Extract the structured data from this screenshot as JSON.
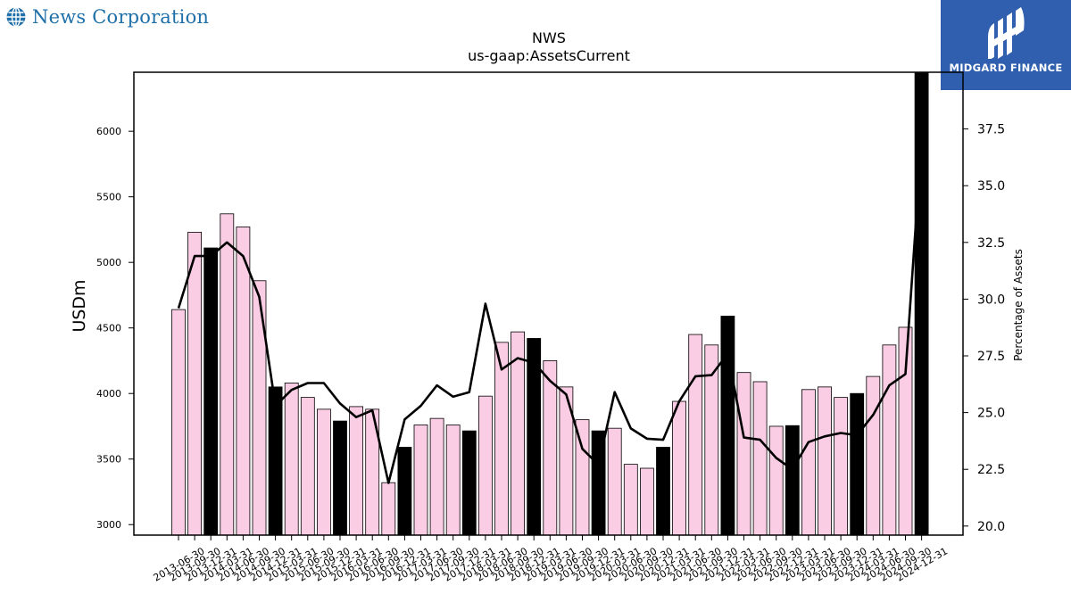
{
  "header": {
    "company_name": "News Corporation",
    "sponsor_name": "MIDGARD FINANCE",
    "brand_color": "#1f6fa8",
    "sponsor_color": "#2f5fae"
  },
  "chart_data": {
    "type": "bar",
    "title": "NWS",
    "subtitle": "us-gaap:AssetsCurrent",
    "ylabel": "USDm",
    "y2label": "Percentage of Assets",
    "ylim": [
      2920,
      6450
    ],
    "y2lim": [
      19.6,
      40.0
    ],
    "yticks": [
      3000,
      3500,
      4000,
      4500,
      5000,
      5500,
      6000
    ],
    "y2ticks": [
      "20.0",
      "22.5",
      "25.0",
      "27.5",
      "30.0",
      "32.5",
      "35.0",
      "37.5"
    ],
    "bar_colors": {
      "default": "#fbcde4",
      "highlight": "#000000",
      "edge": "#000000",
      "line": "#000000"
    },
    "categories": [
      "2013-06-30",
      "2013-09-30",
      "2013-12-31",
      "2014-03-31",
      "2014-06-30",
      "2014-09-30",
      "2014-12-31",
      "2015-03-31",
      "2015-06-30",
      "2015-09-30",
      "2015-12-31",
      "2016-03-31",
      "2016-06-30",
      "2016-09-30",
      "2016-12-31",
      "2017-03-31",
      "2017-06-30",
      "2017-09-30",
      "2017-12-31",
      "2018-03-31",
      "2018-06-30",
      "2018-09-30",
      "2018-12-31",
      "2019-03-31",
      "2019-06-30",
      "2019-09-30",
      "2019-12-31",
      "2020-03-31",
      "2020-06-30",
      "2020-09-30",
      "2020-12-31",
      "2021-03-31",
      "2021-06-30",
      "2021-09-30",
      "2021-12-31",
      "2022-03-31",
      "2022-06-30",
      "2022-09-30",
      "2022-12-31",
      "2023-03-31",
      "2023-06-30",
      "2023-09-30",
      "2023-12-31",
      "2024-03-31",
      "2024-06-30",
      "2024-09-30",
      "2024-12-31"
    ],
    "highlight_categories": [
      "2013-12-31",
      "2014-12-31",
      "2015-12-31",
      "2016-12-31",
      "2017-12-31",
      "2018-12-31",
      "2019-12-31",
      "2020-12-31",
      "2021-12-31",
      "2022-12-31",
      "2023-12-31",
      "2024-12-31"
    ],
    "series": [
      {
        "type": "bar",
        "axis": "left",
        "values": [
          4640,
          5230,
          5110,
          5370,
          5270,
          4860,
          4050,
          4080,
          3970,
          3880,
          3790,
          3900,
          3880,
          3320,
          3590,
          3760,
          3810,
          3760,
          3715,
          3980,
          4390,
          4470,
          4420,
          4250,
          4050,
          3800,
          3715,
          3735,
          3460,
          3430,
          3590,
          3940,
          4450,
          4370,
          4590,
          4160,
          4090,
          3750,
          3755,
          4030,
          4050,
          3970,
          4000,
          4130,
          4370,
          4505,
          6450
        ]
      },
      {
        "type": "line",
        "axis": "right",
        "values": [
          29.6,
          31.9,
          31.9,
          32.5,
          31.9,
          30.1,
          25.3,
          26.0,
          26.3,
          26.3,
          25.4,
          24.8,
          25.1,
          21.9,
          24.7,
          25.3,
          26.2,
          25.7,
          25.9,
          29.8,
          26.9,
          27.4,
          27.2,
          26.4,
          25.8,
          23.4,
          22.7,
          25.9,
          24.3,
          23.85,
          23.8,
          25.5,
          26.6,
          26.65,
          27.6,
          23.9,
          23.8,
          23.0,
          22.5,
          23.7,
          23.95,
          24.1,
          24.0,
          24.9,
          26.2,
          26.7,
          37.0
        ]
      }
    ],
    "grid": false,
    "legend": "none"
  }
}
